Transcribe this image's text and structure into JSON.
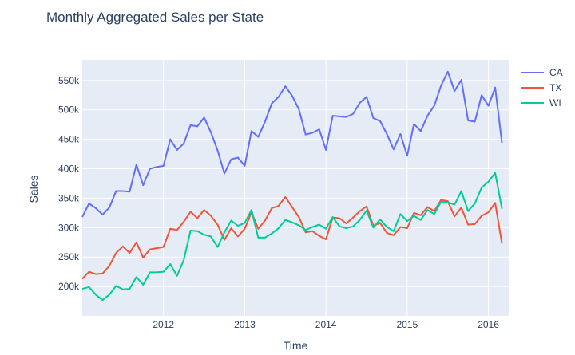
{
  "chart_data": {
    "type": "line",
    "title": "Monthly Aggregated Sales per State",
    "xlabel": "Time",
    "ylabel": "Sales",
    "x_start": "2011-01",
    "x_end": "2016-04",
    "xlim": [
      "2011-01",
      "2016-04"
    ],
    "x_ticks": [
      {
        "date": "2012-01",
        "label": "2012"
      },
      {
        "date": "2013-01",
        "label": "2013"
      },
      {
        "date": "2014-01",
        "label": "2014"
      },
      {
        "date": "2015-01",
        "label": "2015"
      },
      {
        "date": "2016-01",
        "label": "2016"
      }
    ],
    "ylim": [
      150000,
      585000
    ],
    "y_ticks": [
      {
        "value": 200000,
        "label": "200k"
      },
      {
        "value": 250000,
        "label": "250k"
      },
      {
        "value": 300000,
        "label": "300k"
      },
      {
        "value": 350000,
        "label": "350k"
      },
      {
        "value": 400000,
        "label": "400k"
      },
      {
        "value": 450000,
        "label": "450k"
      },
      {
        "value": 500000,
        "label": "500k"
      },
      {
        "value": 550000,
        "label": "550k"
      }
    ],
    "grid": true,
    "legend_position": "right",
    "series": [
      {
        "name": "CA",
        "color": "#636efa",
        "values": [
          318000,
          341000,
          333000,
          322000,
          334000,
          362000,
          362000,
          361000,
          407000,
          372000,
          400000,
          403000,
          405000,
          450000,
          432000,
          443000,
          474000,
          472000,
          487000,
          462000,
          431000,
          392000,
          416000,
          419000,
          405000,
          464000,
          454000,
          480000,
          511000,
          522000,
          540000,
          524000,
          501000,
          458000,
          461000,
          467000,
          432000,
          490000,
          489000,
          488000,
          493000,
          512000,
          522000,
          486000,
          481000,
          459000,
          433000,
          459000,
          422000,
          476000,
          464000,
          490000,
          507000,
          541000,
          565000,
          532000,
          551000,
          482000,
          480000,
          525000,
          507000,
          538000,
          444000
        ]
      },
      {
        "name": "TX",
        "color": "#ef553b",
        "values": [
          213000,
          225000,
          221000,
          222000,
          235000,
          257000,
          268000,
          257000,
          275000,
          249000,
          263000,
          265000,
          267000,
          298000,
          296000,
          310000,
          327000,
          316000,
          330000,
          320000,
          305000,
          279000,
          299000,
          285000,
          298000,
          326000,
          298000,
          312000,
          333000,
          337000,
          352000,
          335000,
          318000,
          292000,
          294000,
          286000,
          280000,
          317000,
          316000,
          307000,
          317000,
          328000,
          336000,
          303000,
          308000,
          291000,
          287000,
          301000,
          299000,
          325000,
          321000,
          335000,
          328000,
          347000,
          345000,
          319000,
          334000,
          305000,
          306000,
          320000,
          326000,
          342000,
          273000
        ]
      },
      {
        "name": "WI",
        "color": "#00cc96",
        "values": [
          196000,
          199000,
          186000,
          177000,
          186000,
          201000,
          195000,
          196000,
          216000,
          203000,
          224000,
          224000,
          225000,
          238000,
          218000,
          245000,
          295000,
          294000,
          288000,
          285000,
          267000,
          292000,
          312000,
          303000,
          308000,
          330000,
          283000,
          283000,
          290000,
          299000,
          313000,
          309000,
          304000,
          296000,
          301000,
          305000,
          298000,
          318000,
          302000,
          299000,
          302000,
          313000,
          329000,
          300000,
          314000,
          301000,
          294000,
          323000,
          311000,
          320000,
          313000,
          330000,
          323000,
          344000,
          343000,
          339000,
          362000,
          328000,
          341000,
          368000,
          378000,
          393000,
          332000
        ]
      }
    ]
  }
}
